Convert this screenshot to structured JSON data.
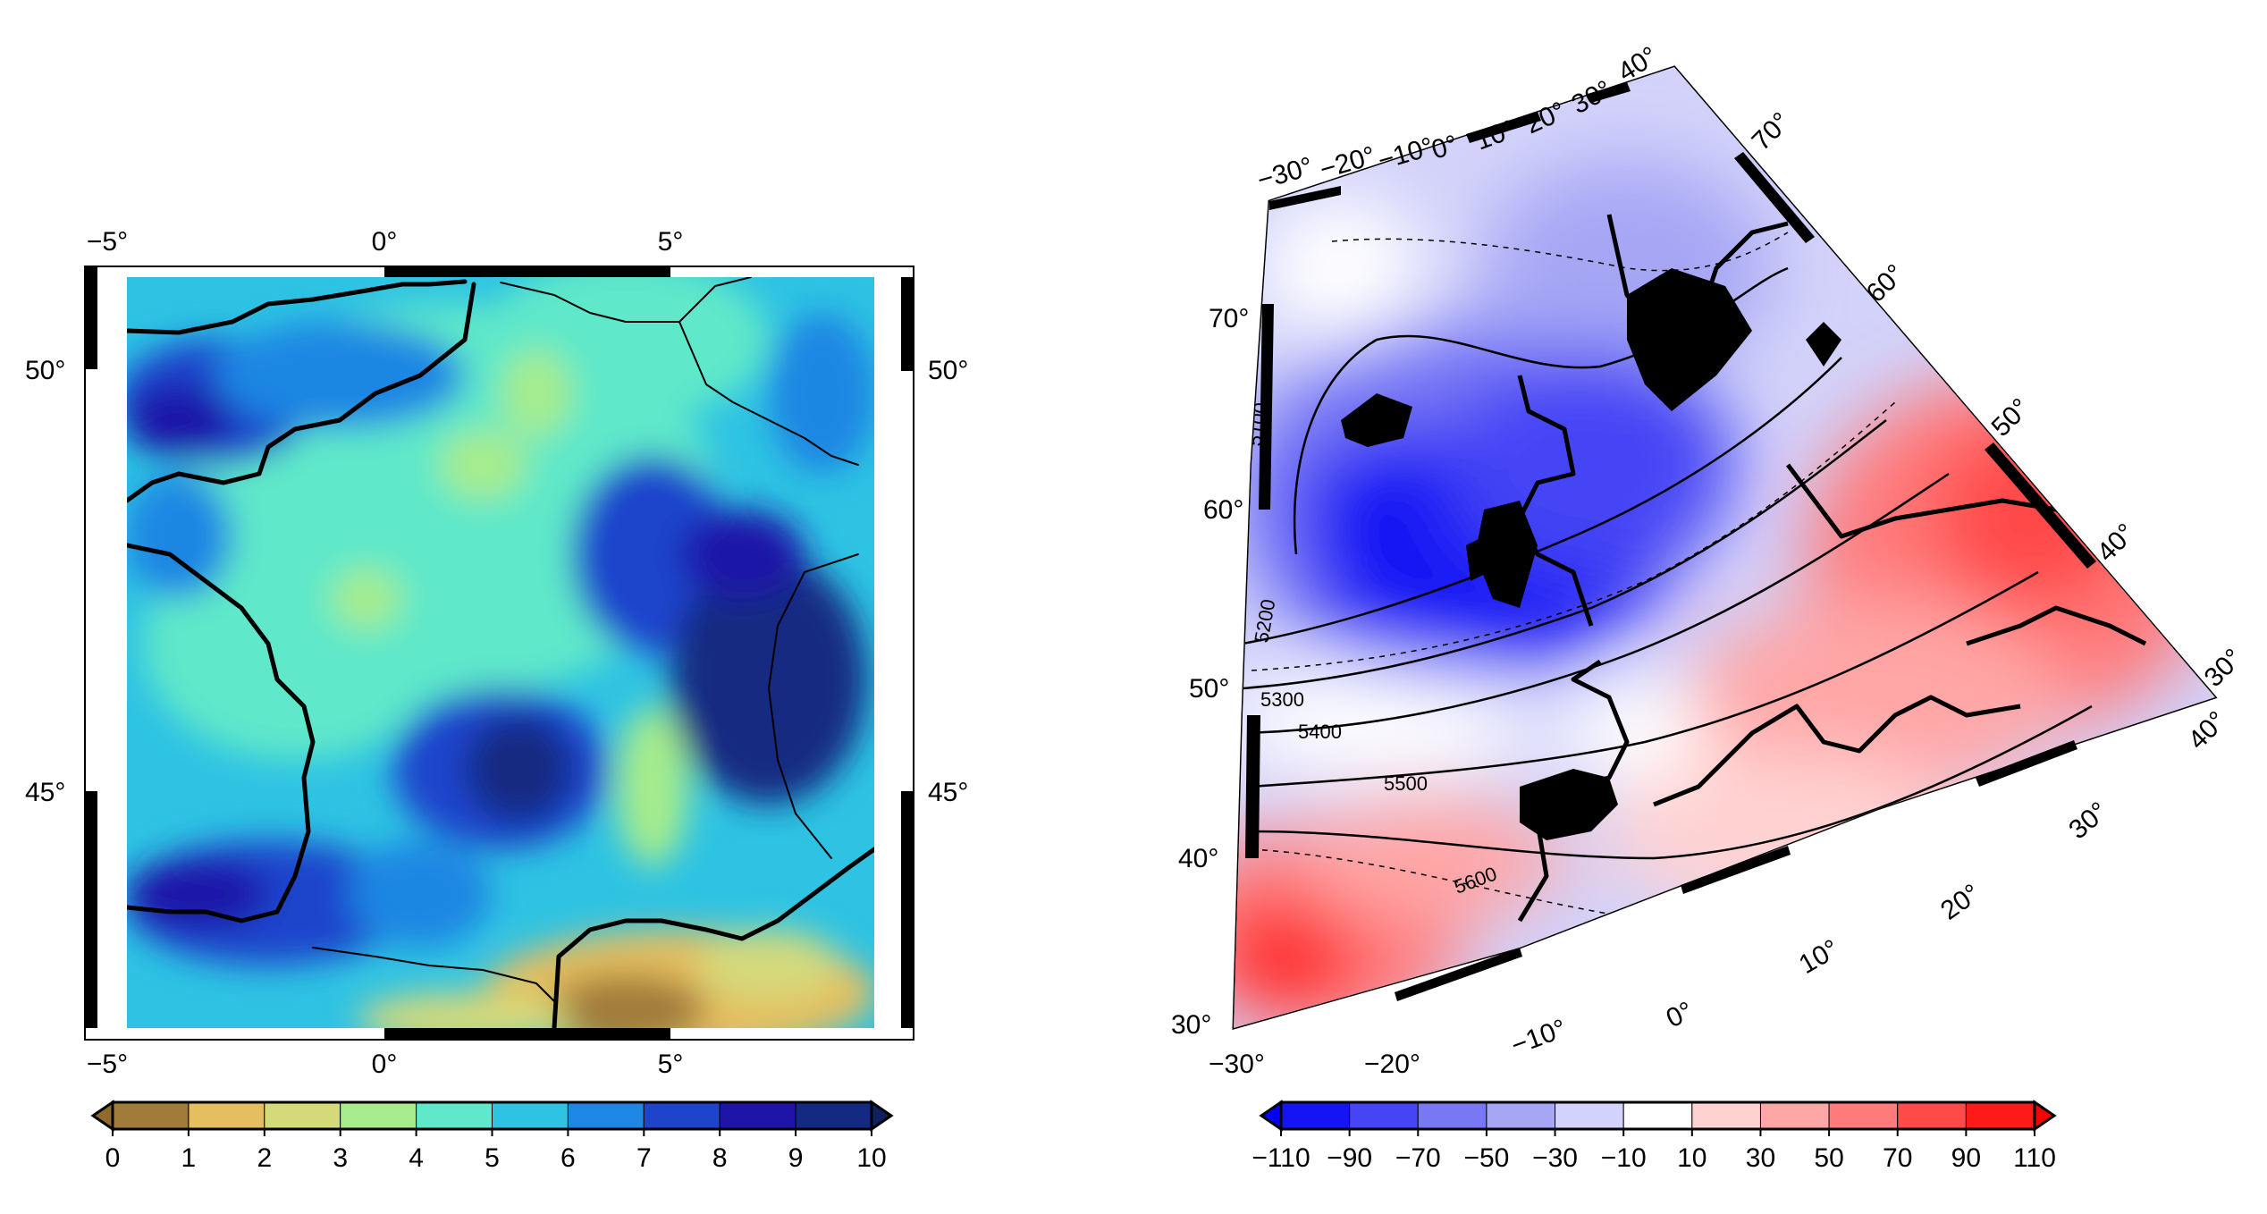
{
  "left_map": {
    "lon_ticks": [
      "−5°",
      "0°",
      "5°"
    ],
    "lat_ticks": [
      "50°",
      "45°"
    ],
    "colorbar": {
      "colors": [
        "#a07b3a",
        "#e5be5f",
        "#d4d97a",
        "#a6ec8c",
        "#5fe8c9",
        "#2ec3e3",
        "#1f86e3",
        "#1f44cc",
        "#1f14a8",
        "#142a82"
      ],
      "labels": [
        "0",
        "1",
        "2",
        "3",
        "4",
        "5",
        "6",
        "7",
        "8",
        "9",
        "10"
      ],
      "low_arrow_color": "#8f6a2c",
      "high_arrow_color": "#10205f"
    }
  },
  "right_map": {
    "top_lon_ticks": [
      "−30°",
      "−20°",
      "−10°",
      "0°",
      "10°",
      "20°",
      "30°",
      "40°"
    ],
    "bottom_lon_ticks": [
      "−30°",
      "−20°",
      "−10°",
      "0°",
      "10°",
      "20°",
      "30°",
      "40°"
    ],
    "left_lat_ticks": [
      "70°",
      "60°",
      "50°",
      "40°",
      "30°"
    ],
    "right_lat_ticks": [
      "70°",
      "60°",
      "50°",
      "40°",
      "30°"
    ],
    "contour_labels": [
      "5100",
      "5200",
      "5300",
      "5400",
      "5500",
      "5600"
    ],
    "colorbar": {
      "colors": [
        "#1414f5",
        "#4545f5",
        "#7878f5",
        "#a6a6f5",
        "#d2d2fa",
        "#ffffff",
        "#ffd2d2",
        "#ffa6a6",
        "#ff7a7a",
        "#ff4a4a",
        "#ff1a1a"
      ],
      "labels": [
        "−110",
        "−90",
        "−70",
        "−50",
        "−30",
        "−10",
        "10",
        "30",
        "50",
        "70",
        "90",
        "110"
      ],
      "low_arrow_color": "#0000ff",
      "high_arrow_color": "#ff0000"
    }
  }
}
